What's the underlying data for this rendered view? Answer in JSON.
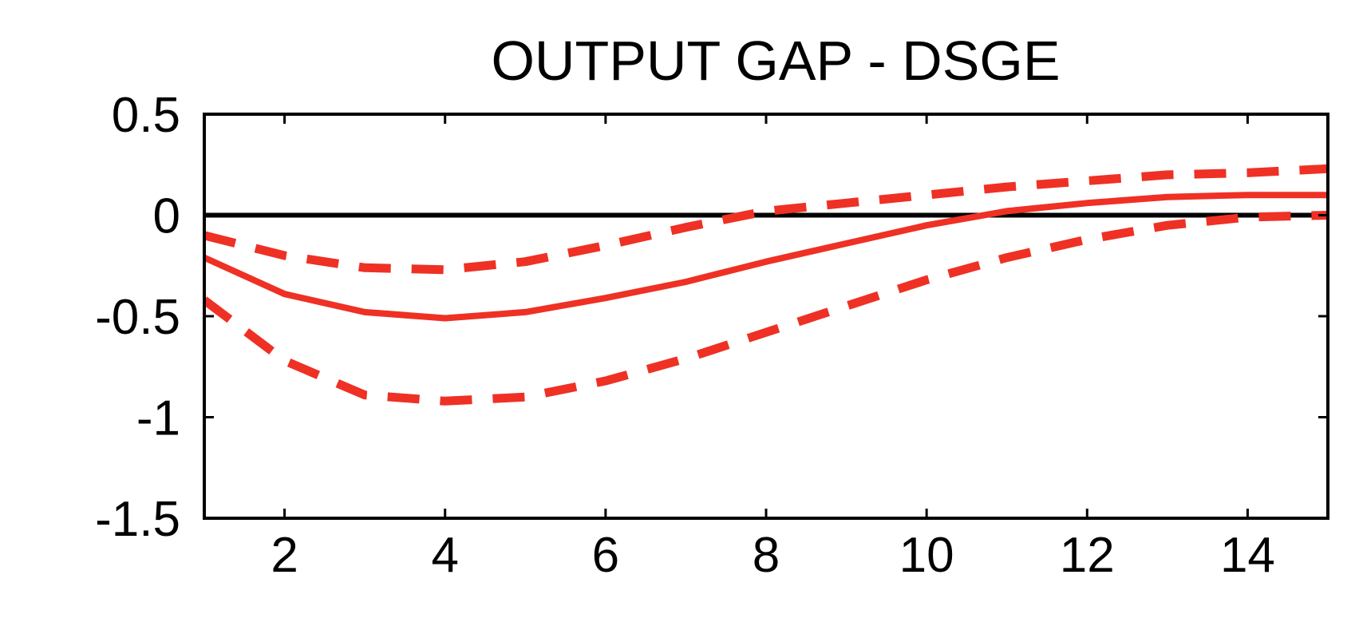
{
  "chart_data": {
    "type": "line",
    "title": "OUTPUT GAP - DSGE",
    "xlabel": "",
    "ylabel": "",
    "xlim": [
      1,
      15
    ],
    "ylim": [
      -1.5,
      0.5
    ],
    "xticks": [
      2,
      4,
      6,
      8,
      10,
      12,
      14
    ],
    "xtick_labels": [
      "2",
      "4",
      "6",
      "8",
      "10",
      "12",
      "14"
    ],
    "yticks": [
      0.5,
      0,
      -0.5,
      -1,
      -1.5
    ],
    "ytick_labels": [
      "0.5",
      "0",
      "-0.5",
      "-1",
      "-1.5"
    ],
    "grid": false,
    "legend": "none",
    "zero_line": true,
    "x": [
      1,
      2,
      3,
      4,
      5,
      6,
      7,
      8,
      9,
      10,
      11,
      12,
      13,
      14,
      15
    ],
    "series": [
      {
        "style": "solid",
        "color": "#ee3124",
        "values": [
          -0.21,
          -0.39,
          -0.48,
          -0.51,
          -0.48,
          -0.41,
          -0.33,
          -0.23,
          -0.14,
          -0.05,
          0.02,
          0.06,
          0.09,
          0.1,
          0.1
        ]
      },
      {
        "style": "dashed",
        "color": "#ee3124",
        "values": [
          -0.1,
          -0.2,
          -0.26,
          -0.27,
          -0.23,
          -0.15,
          -0.06,
          0.02,
          0.06,
          0.1,
          0.14,
          0.17,
          0.2,
          0.21,
          0.23
        ]
      },
      {
        "style": "dashed",
        "color": "#ee3124",
        "values": [
          -0.42,
          -0.72,
          -0.89,
          -0.92,
          -0.9,
          -0.82,
          -0.71,
          -0.58,
          -0.45,
          -0.32,
          -0.21,
          -0.12,
          -0.05,
          -0.01,
          0.0
        ]
      }
    ],
    "zero_line_color": "#000000"
  }
}
